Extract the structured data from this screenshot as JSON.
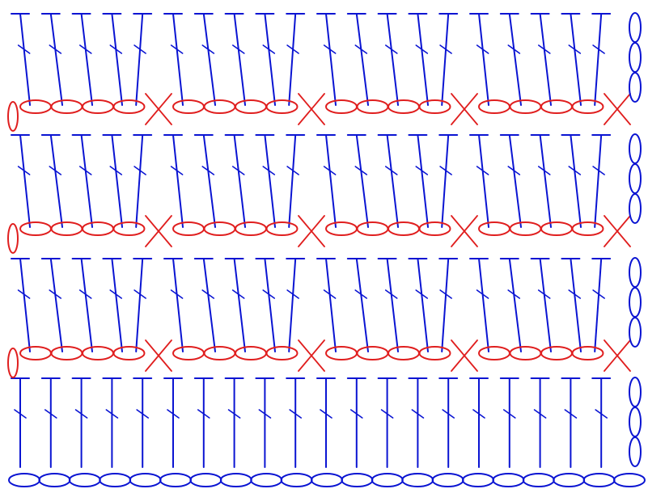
{
  "colors": {
    "background": "#ffffff",
    "double_crochet": "#0a14d2",
    "chain_row": "#e01e1e",
    "foundation_chain": "#0a14d2",
    "turning_chain_red": "#e01e1e",
    "turning_chain_blue": "#0a14d2"
  },
  "legend": {
    "double_crochet": "double-crochet-symbol",
    "chain": "chain-oval-symbol",
    "single_crochet": "x-symbol"
  },
  "pattern": {
    "blocks": 3,
    "dc_rows": 4,
    "dc_per_row": 20,
    "groups_per_row": 4,
    "dc_per_group": 5,
    "chains_per_group": 4,
    "foundation_chains": 21,
    "turning_chain_length": 3
  }
}
